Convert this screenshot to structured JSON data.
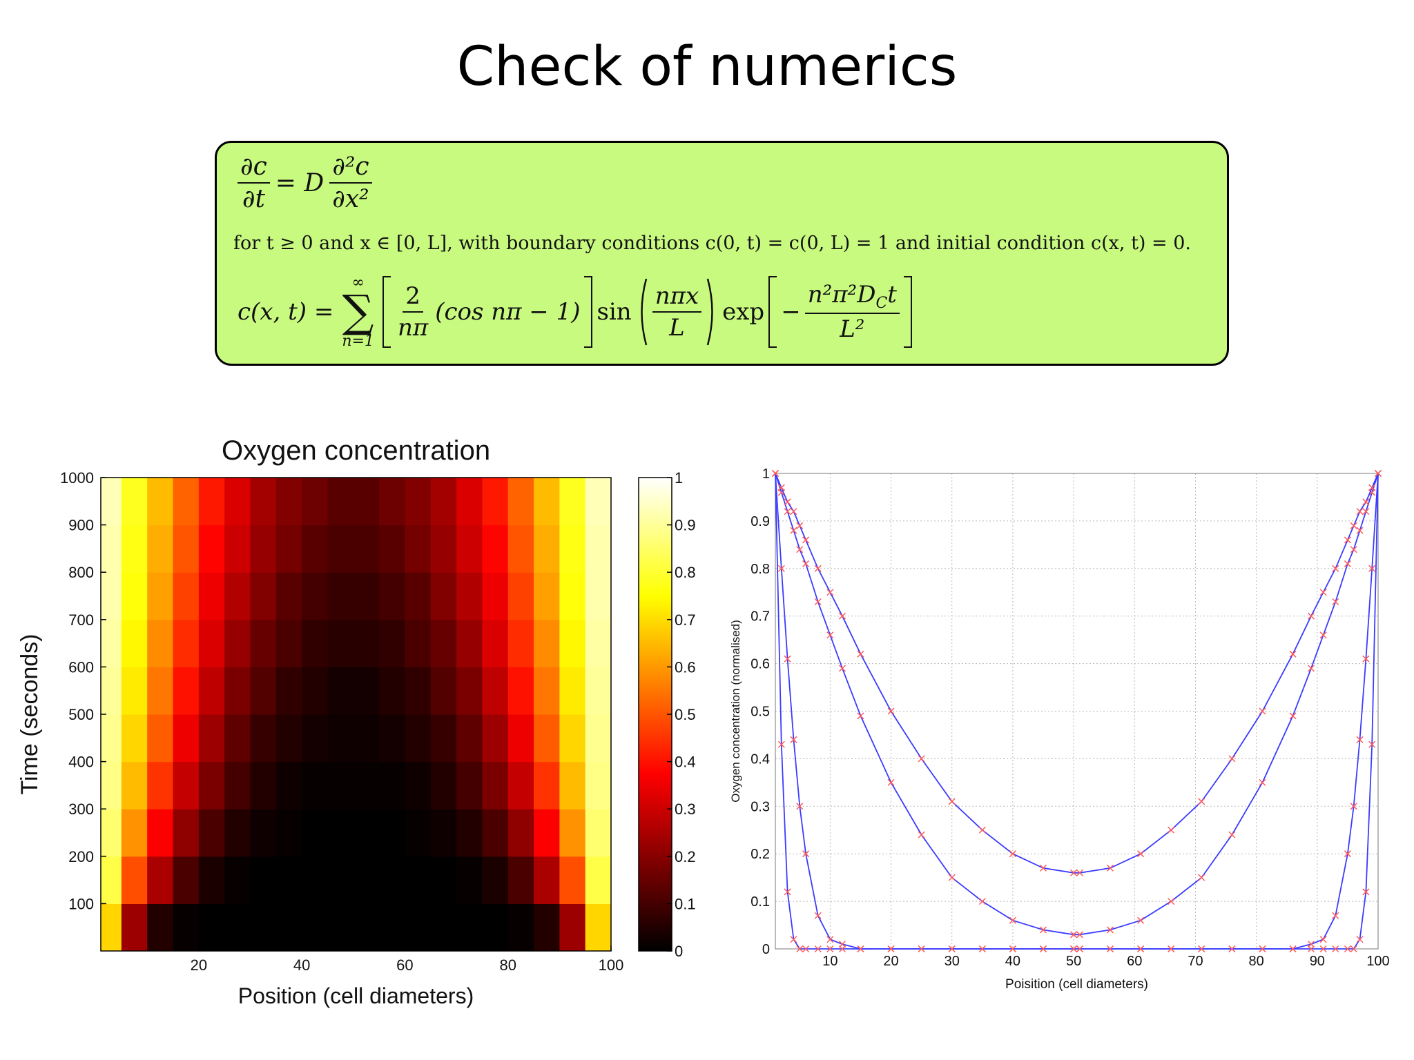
{
  "title": "Check of numerics",
  "equations": {
    "pde": {
      "lhs_numerator": "∂c",
      "lhs_denominator": "∂t",
      "operator": "= D",
      "rhs_numerator": "∂²c",
      "rhs_denominator": "∂x²"
    },
    "conditions": "for t ≥ 0 and x ∈ [0, L], with boundary conditions c(0, t) = c(0, L) = 1 and initial condition c(x, t) = 0.",
    "solution": {
      "lhs": "c(x, t) =",
      "sum_symbol": "∑",
      "sum_upper": "∞",
      "sum_lower": "n=1",
      "coef_numerator": "2",
      "coef_denominator": "nπ",
      "cos_term": "(cos nπ − 1)",
      "sin": "sin",
      "sin_numerator": "nπx",
      "sin_denominator": "L",
      "exp": "exp",
      "minus": "−",
      "exp_numerator_a": "n²π²D",
      "exp_numerator_sub": "C",
      "exp_numerator_b": "t",
      "exp_denominator": "L²"
    }
  },
  "chart_data": [
    {
      "type": "heatmap",
      "title": "Oxygen concentration",
      "x_label": "Position (cell diameters)",
      "y_label": "Time (seconds)",
      "colormap": "hot",
      "x": [
        2.5,
        7.5,
        12.5,
        17.5,
        22.5,
        27.5,
        32.5,
        37.5,
        42.5,
        47.5,
        52.5,
        57.5,
        62.5,
        67.5,
        72.5,
        77.5,
        82.5,
        87.5,
        92.5,
        97.5
      ],
      "y": [
        50,
        150,
        250,
        350,
        450,
        550,
        650,
        750,
        850,
        950
      ],
      "z": [
        [
          0.69,
          0.23,
          0.05,
          0.01,
          0,
          0,
          0,
          0,
          0,
          0,
          0,
          0,
          0,
          0,
          0,
          0,
          0.01,
          0.05,
          0.23,
          0.69
        ],
        [
          0.82,
          0.49,
          0.25,
          0.11,
          0.04,
          0.01,
          0,
          0,
          0,
          0,
          0,
          0,
          0,
          0,
          0.01,
          0.04,
          0.11,
          0.25,
          0.49,
          0.82
        ],
        [
          0.86,
          0.59,
          0.37,
          0.21,
          0.11,
          0.05,
          0.02,
          0.01,
          0,
          0,
          0,
          0,
          0.01,
          0.02,
          0.05,
          0.11,
          0.21,
          0.37,
          0.59,
          0.86
        ],
        [
          0.88,
          0.65,
          0.45,
          0.29,
          0.18,
          0.1,
          0.05,
          0.02,
          0.01,
          0.01,
          0.01,
          0.01,
          0.02,
          0.05,
          0.1,
          0.18,
          0.29,
          0.45,
          0.65,
          0.88
        ],
        [
          0.89,
          0.69,
          0.51,
          0.35,
          0.23,
          0.14,
          0.08,
          0.05,
          0.03,
          0.02,
          0.02,
          0.03,
          0.05,
          0.08,
          0.14,
          0.23,
          0.35,
          0.51,
          0.69,
          0.89
        ],
        [
          0.9,
          0.72,
          0.55,
          0.4,
          0.28,
          0.18,
          0.12,
          0.07,
          0.05,
          0.03,
          0.03,
          0.05,
          0.07,
          0.12,
          0.18,
          0.28,
          0.4,
          0.55,
          0.72,
          0.9
        ],
        [
          0.91,
          0.74,
          0.58,
          0.44,
          0.32,
          0.22,
          0.15,
          0.11,
          0.07,
          0.06,
          0.06,
          0.07,
          0.11,
          0.15,
          0.22,
          0.32,
          0.44,
          0.58,
          0.74,
          0.91
        ],
        [
          0.92,
          0.76,
          0.61,
          0.47,
          0.35,
          0.26,
          0.19,
          0.13,
          0.1,
          0.08,
          0.08,
          0.1,
          0.13,
          0.19,
          0.26,
          0.35,
          0.47,
          0.61,
          0.76,
          0.92
        ],
        [
          0.92,
          0.77,
          0.63,
          0.5,
          0.38,
          0.3,
          0.22,
          0.17,
          0.13,
          0.11,
          0.11,
          0.13,
          0.17,
          0.22,
          0.3,
          0.38,
          0.5,
          0.63,
          0.77,
          0.92
        ],
        [
          0.93,
          0.78,
          0.65,
          0.52,
          0.41,
          0.32,
          0.24,
          0.19,
          0.16,
          0.13,
          0.13,
          0.16,
          0.19,
          0.24,
          0.32,
          0.41,
          0.52,
          0.65,
          0.78,
          0.93
        ]
      ],
      "xlim": [
        1,
        100
      ],
      "xticks": [
        20,
        40,
        60,
        80,
        100
      ],
      "ylim": [
        0,
        1000
      ],
      "yticks": [
        100,
        200,
        300,
        400,
        500,
        600,
        700,
        800,
        900,
        1000
      ],
      "clim": [
        0,
        1
      ],
      "colorbar_ticks": [
        0,
        0.1,
        0.2,
        0.3,
        0.4,
        0.5,
        0.6,
        0.7,
        0.8,
        0.9,
        1
      ]
    },
    {
      "type": "line",
      "x_label": "Poisition (cell diameters)",
      "y_label": "Oxygen concentration (normalised)",
      "x": [
        1,
        2,
        3,
        4,
        5,
        6,
        8,
        10,
        12,
        15,
        20,
        25,
        30,
        35,
        40,
        45,
        50,
        51,
        56,
        61,
        66,
        71,
        76,
        81,
        86,
        89,
        91,
        93,
        95,
        96,
        97,
        98,
        99,
        100
      ],
      "series": [
        {
          "color": "#3b3bff",
          "marker_color": "#ff5a5a",
          "values": [
            1,
            0.43,
            0.12,
            0.02,
            0,
            0,
            0,
            0,
            0,
            0,
            0,
            0,
            0,
            0,
            0,
            0,
            0,
            0,
            0,
            0,
            0,
            0,
            0,
            0,
            0,
            0,
            0,
            0,
            0,
            0,
            0.02,
            0.12,
            0.43,
            1
          ]
        },
        {
          "color": "#3b3bff",
          "marker_color": "#ff5a5a",
          "values": [
            1,
            0.8,
            0.61,
            0.44,
            0.3,
            0.2,
            0.07,
            0.02,
            0.01,
            0,
            0,
            0,
            0,
            0,
            0,
            0,
            0,
            0,
            0,
            0,
            0,
            0,
            0,
            0,
            0,
            0.01,
            0.02,
            0.07,
            0.2,
            0.3,
            0.44,
            0.61,
            0.8,
            1
          ]
        },
        {
          "color": "#3b3bff",
          "marker_color": "#ff5a5a",
          "values": [
            1,
            0.96,
            0.92,
            0.88,
            0.84,
            0.81,
            0.73,
            0.66,
            0.59,
            0.49,
            0.35,
            0.24,
            0.15,
            0.1,
            0.06,
            0.04,
            0.03,
            0.03,
            0.04,
            0.06,
            0.1,
            0.15,
            0.24,
            0.35,
            0.49,
            0.59,
            0.66,
            0.73,
            0.81,
            0.84,
            0.88,
            0.92,
            0.96,
            1
          ]
        },
        {
          "color": "#3b3bff",
          "marker_color": "#ff5a5a",
          "values": [
            1,
            0.97,
            0.94,
            0.92,
            0.89,
            0.86,
            0.8,
            0.75,
            0.7,
            0.62,
            0.5,
            0.4,
            0.31,
            0.25,
            0.2,
            0.17,
            0.16,
            0.16,
            0.17,
            0.2,
            0.25,
            0.31,
            0.4,
            0.5,
            0.62,
            0.7,
            0.75,
            0.8,
            0.86,
            0.89,
            0.92,
            0.94,
            0.97,
            1
          ]
        }
      ],
      "xlim": [
        1,
        100
      ],
      "xticks": [
        10,
        20,
        30,
        40,
        50,
        60,
        70,
        80,
        90,
        100
      ],
      "ylim": [
        0,
        1
      ],
      "yticks": [
        0,
        0.1,
        0.2,
        0.3,
        0.4,
        0.5,
        0.6,
        0.7,
        0.8,
        0.9,
        1
      ],
      "grid": true
    }
  ]
}
